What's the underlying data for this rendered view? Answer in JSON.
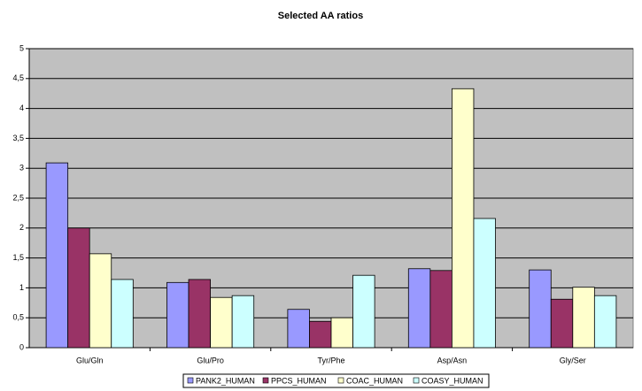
{
  "chart_data": {
    "type": "bar",
    "title": "Selected AA ratios",
    "categories": [
      "Glu/Gln",
      "Glu/Pro",
      "Tyr/Phe",
      "Asp/Asn",
      "Gly/Ser"
    ],
    "series": [
      {
        "name": "PANK2_HUMAN",
        "color": "#9999ff",
        "values": [
          3.09,
          1.09,
          0.64,
          1.32,
          1.3
        ]
      },
      {
        "name": "PPCS_HUMAN",
        "color": "#993366",
        "values": [
          2.0,
          1.14,
          0.44,
          1.29,
          0.81
        ]
      },
      {
        "name": "COAC_HUMAN",
        "color": "#ffffcc",
        "values": [
          1.57,
          0.84,
          0.5,
          4.33,
          1.01
        ]
      },
      {
        "name": "COASY_HUMAN",
        "color": "#ccffff",
        "values": [
          1.14,
          0.87,
          1.21,
          2.16,
          0.87
        ]
      }
    ],
    "ylim": [
      0,
      5
    ],
    "yticks": [
      0,
      {
        "value": 0.5,
        "label": "0,5"
      },
      1,
      {
        "value": 1.5,
        "label": "1,5"
      },
      2,
      {
        "value": 2.5,
        "label": "2,5"
      },
      3,
      {
        "value": 3.5,
        "label": "3,5"
      },
      4,
      {
        "value": 4.5,
        "label": "4,5"
      },
      5
    ],
    "grid": true,
    "legend": "bottom"
  }
}
